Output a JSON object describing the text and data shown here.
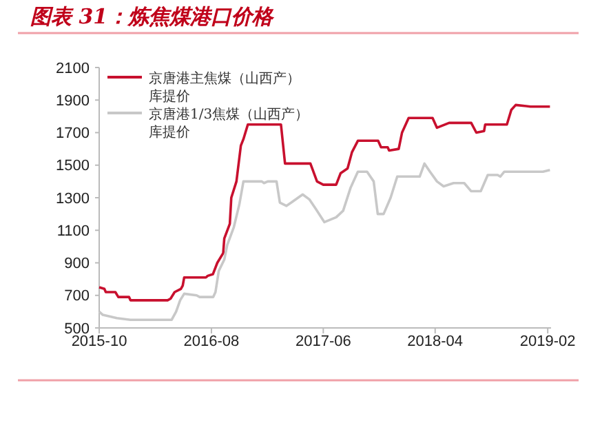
{
  "chart_data": {
    "type": "line",
    "title": "图表 31：炼焦煤港口价格",
    "xlim": [
      "2015-10-01",
      "2019-02-10"
    ],
    "xticks": [
      "2015-10",
      "2016-08",
      "2017-06",
      "2018-04",
      "2019-02"
    ],
    "ylim": [
      500,
      2100
    ],
    "yticks": [
      500,
      700,
      900,
      1100,
      1300,
      1500,
      1700,
      1900,
      2100
    ],
    "grid": false,
    "legend": "top left",
    "marker": "none",
    "line_style": "solid",
    "series": [
      {
        "name": "京唐港主焦煤（山西产）库提价",
        "color": "#c8102e",
        "x": [
          "2015-10-01",
          "2015-10-15",
          "2015-10-19",
          "2015-11-14",
          "2015-11-22",
          "2015-12-21",
          "2015-12-25",
          "2016-04-04",
          "2016-04-12",
          "2016-04-23",
          "2016-05-10",
          "2016-05-15",
          "2016-05-19",
          "2016-07-17",
          "2016-07-22",
          "2016-08-05",
          "2016-08-17",
          "2016-09-02",
          "2016-09-05",
          "2016-09-20",
          "2016-09-24",
          "2016-10-08",
          "2016-10-20",
          "2016-10-27",
          "2016-11-08",
          "2017-02-06",
          "2017-02-17",
          "2017-04-27",
          "2017-05-15",
          "2017-06-01",
          "2017-07-06",
          "2017-07-18",
          "2017-08-06",
          "2017-08-18",
          "2017-09-03",
          "2017-10-28",
          "2017-11-05",
          "2017-11-23",
          "2017-11-27",
          "2017-12-23",
          "2018-01-01",
          "2018-01-19",
          "2018-03-25",
          "2018-04-06",
          "2018-05-09",
          "2018-07-08",
          "2018-07-22",
          "2018-08-12",
          "2018-08-15",
          "2018-10-13",
          "2018-10-25",
          "2018-11-06",
          "2018-12-16",
          "2019-02-07"
        ],
        "values": [
          750,
          740,
          720,
          720,
          690,
          690,
          670,
          670,
          680,
          720,
          740,
          760,
          810,
          810,
          820,
          830,
          900,
          960,
          1050,
          1140,
          1300,
          1400,
          1620,
          1660,
          1750,
          1750,
          1510,
          1510,
          1400,
          1380,
          1380,
          1450,
          1480,
          1580,
          1650,
          1650,
          1610,
          1610,
          1590,
          1600,
          1700,
          1790,
          1790,
          1730,
          1760,
          1760,
          1700,
          1710,
          1750,
          1750,
          1840,
          1870,
          1860,
          1860
        ]
      },
      {
        "name": "京唐港1/3焦煤（山西产）库提价",
        "color": "#c8c8c8",
        "x": [
          "2015-10-01",
          "2015-10-11",
          "2015-11-18",
          "2015-12-25",
          "2016-03-27",
          "2016-04-15",
          "2016-04-27",
          "2016-05-08",
          "2016-05-19",
          "2016-06-22",
          "2016-06-30",
          "2016-08-06",
          "2016-08-12",
          "2016-08-21",
          "2016-09-05",
          "2016-09-13",
          "2016-10-01",
          "2016-10-16",
          "2016-10-27",
          "2016-12-16",
          "2016-12-22",
          "2017-01-01",
          "2017-01-25",
          "2017-02-03",
          "2017-02-21",
          "2017-03-06",
          "2017-04-06",
          "2017-04-24",
          "2017-05-12",
          "2017-06-04",
          "2017-07-06",
          "2017-07-25",
          "2017-08-14",
          "2017-09-03",
          "2017-09-28",
          "2017-10-16",
          "2017-10-27",
          "2017-11-12",
          "2017-12-01",
          "2017-12-19",
          "2018-02-18",
          "2018-03-03",
          "2018-03-18",
          "2018-04-06",
          "2018-04-24",
          "2018-05-21",
          "2018-06-19",
          "2018-07-08",
          "2018-08-03",
          "2018-08-22",
          "2018-09-18",
          "2018-09-25",
          "2018-10-06",
          "2018-12-16",
          "2019-01-19",
          "2019-02-07"
        ],
        "values": [
          600,
          580,
          560,
          550,
          550,
          550,
          600,
          670,
          710,
          700,
          690,
          690,
          720,
          850,
          920,
          1010,
          1120,
          1260,
          1400,
          1400,
          1390,
          1400,
          1400,
          1270,
          1250,
          1270,
          1320,
          1290,
          1230,
          1150,
          1180,
          1220,
          1360,
          1460,
          1460,
          1400,
          1200,
          1200,
          1300,
          1430,
          1430,
          1510,
          1460,
          1400,
          1370,
          1390,
          1390,
          1340,
          1340,
          1440,
          1440,
          1430,
          1460,
          1460,
          1460,
          1470
        ]
      }
    ]
  }
}
